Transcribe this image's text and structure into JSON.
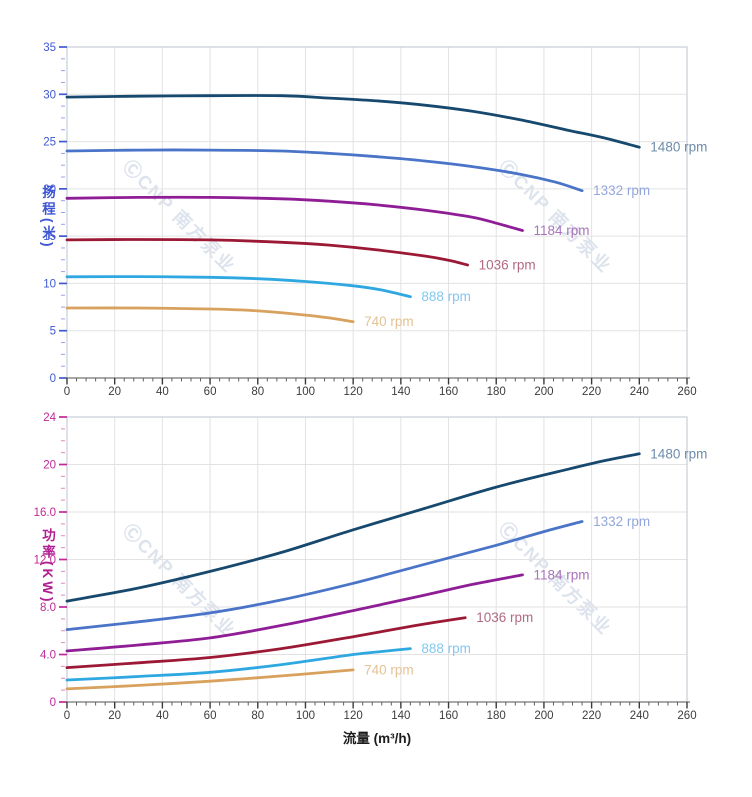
{
  "watermark": {
    "text": "ⒸCNP 南方泵业"
  },
  "x_axis": {
    "title": "流量 (m³/h)",
    "min": 0,
    "max": 260,
    "major_step": 20,
    "minor_step": 4,
    "tick_labels": [
      "0",
      "20",
      "40",
      "60",
      "80",
      "100",
      "120",
      "140",
      "160",
      "180",
      "200",
      "220",
      "240",
      "260"
    ],
    "tick_label_color": "#3c3c3c"
  },
  "chart_data": [
    {
      "type": "line",
      "name": "head",
      "ylabel": "扬程(米)",
      "xlabel": "流量 (m³/h)",
      "xlim": [
        0,
        260
      ],
      "ylim": [
        0,
        35
      ],
      "y_major_step": 5,
      "y_minor_step": 1.25,
      "y_tick_labels": [
        "0",
        "5",
        "10",
        "15",
        "20",
        "25",
        "30",
        "35"
      ],
      "axis_color": "#4059d2",
      "grid": "on",
      "legend_position": "end-of-line",
      "series": [
        {
          "name": "1480 rpm",
          "color": "#17496f",
          "label_color": "#6d8cab",
          "points": [
            [
              0,
              29.7
            ],
            [
              30,
              29.8
            ],
            [
              60,
              29.85
            ],
            [
              90,
              29.85
            ],
            [
              110,
              29.6
            ],
            [
              130,
              29.3
            ],
            [
              150,
              28.85
            ],
            [
              170,
              28.2
            ],
            [
              190,
              27.3
            ],
            [
              210,
              26.2
            ],
            [
              225,
              25.4
            ],
            [
              240,
              24.4
            ]
          ]
        },
        {
          "name": "1332 rpm",
          "color": "#4a74c8",
          "label_color": "#93a7dd",
          "points": [
            [
              0,
              24.0
            ],
            [
              30,
              24.1
            ],
            [
              60,
              24.1
            ],
            [
              90,
              24.0
            ],
            [
              110,
              23.75
            ],
            [
              130,
              23.4
            ],
            [
              150,
              22.95
            ],
            [
              170,
              22.35
            ],
            [
              190,
              21.55
            ],
            [
              205,
              20.7
            ],
            [
              216,
              19.8
            ]
          ]
        },
        {
          "name": "1184 rpm",
          "color": "#8f1d96",
          "label_color": "#a973bb",
          "points": [
            [
              0,
              19.0
            ],
            [
              30,
              19.1
            ],
            [
              60,
              19.1
            ],
            [
              90,
              18.95
            ],
            [
              110,
              18.7
            ],
            [
              130,
              18.3
            ],
            [
              150,
              17.75
            ],
            [
              170,
              17.0
            ],
            [
              181,
              16.3
            ],
            [
              191,
              15.6
            ]
          ]
        },
        {
          "name": "1036 rpm",
          "color": "#9c1935",
          "label_color": "#b16a80",
          "points": [
            [
              0,
              14.6
            ],
            [
              30,
              14.65
            ],
            [
              60,
              14.6
            ],
            [
              90,
              14.35
            ],
            [
              110,
              14.05
            ],
            [
              130,
              13.55
            ],
            [
              150,
              12.9
            ],
            [
              160,
              12.45
            ],
            [
              168,
              11.95
            ]
          ]
        },
        {
          "name": "888 rpm",
          "color": "#2fa8e1",
          "label_color": "#82c8ef",
          "points": [
            [
              0,
              10.7
            ],
            [
              30,
              10.72
            ],
            [
              60,
              10.65
            ],
            [
              80,
              10.5
            ],
            [
              100,
              10.2
            ],
            [
              120,
              9.75
            ],
            [
              132,
              9.3
            ],
            [
              144,
              8.6
            ]
          ]
        },
        {
          "name": "740 rpm",
          "color": "#d8a25e",
          "label_color": "#e3c294",
          "points": [
            [
              0,
              7.4
            ],
            [
              30,
              7.4
            ],
            [
              60,
              7.3
            ],
            [
              80,
              7.1
            ],
            [
              100,
              6.65
            ],
            [
              110,
              6.35
            ],
            [
              120,
              5.95
            ]
          ]
        }
      ]
    },
    {
      "type": "line",
      "name": "power",
      "ylabel": "功率(KW)",
      "xlabel": "流量 (m³/h)",
      "xlim": [
        0,
        260
      ],
      "ylim": [
        0,
        24
      ],
      "y_major_step": 4,
      "y_minor_step": 1,
      "y_tick_labels": [
        "0",
        "4.0",
        "8.0",
        "12.0",
        "16.0",
        "20",
        "24"
      ],
      "axis_color": "#c02898",
      "grid": "on",
      "legend_position": "end-of-line",
      "series": [
        {
          "name": "1480 rpm",
          "color": "#17496f",
          "label_color": "#6d8cab",
          "points": [
            [
              0,
              8.5
            ],
            [
              30,
              9.6
            ],
            [
              60,
              11.0
            ],
            [
              90,
              12.6
            ],
            [
              120,
              14.5
            ],
            [
              150,
              16.3
            ],
            [
              180,
              18.1
            ],
            [
              210,
              19.6
            ],
            [
              225,
              20.3
            ],
            [
              240,
              20.9
            ]
          ]
        },
        {
          "name": "1332 rpm",
          "color": "#4a74c8",
          "label_color": "#93a7dd",
          "points": [
            [
              0,
              6.1
            ],
            [
              30,
              6.75
            ],
            [
              60,
              7.5
            ],
            [
              90,
              8.6
            ],
            [
              120,
              10.0
            ],
            [
              150,
              11.6
            ],
            [
              180,
              13.2
            ],
            [
              200,
              14.35
            ],
            [
              216,
              15.2
            ]
          ]
        },
        {
          "name": "1184 rpm",
          "color": "#8f1d96",
          "label_color": "#a973bb",
          "points": [
            [
              0,
              4.3
            ],
            [
              30,
              4.8
            ],
            [
              60,
              5.4
            ],
            [
              90,
              6.45
            ],
            [
              120,
              7.7
            ],
            [
              150,
              9.0
            ],
            [
              170,
              9.9
            ],
            [
              191,
              10.7
            ]
          ]
        },
        {
          "name": "1036 rpm",
          "color": "#9c1935",
          "label_color": "#b16a80",
          "points": [
            [
              0,
              2.9
            ],
            [
              30,
              3.3
            ],
            [
              60,
              3.75
            ],
            [
              90,
              4.5
            ],
            [
              120,
              5.5
            ],
            [
              145,
              6.4
            ],
            [
              167,
              7.1
            ]
          ]
        },
        {
          "name": "888 rpm",
          "color": "#2fa8e1",
          "label_color": "#82c8ef",
          "points": [
            [
              0,
              1.85
            ],
            [
              30,
              2.15
            ],
            [
              60,
              2.5
            ],
            [
              90,
              3.15
            ],
            [
              120,
              4.0
            ],
            [
              132,
              4.25
            ],
            [
              144,
              4.5
            ]
          ]
        },
        {
          "name": "740 rpm",
          "color": "#d8a25e",
          "label_color": "#e3c294",
          "points": [
            [
              0,
              1.1
            ],
            [
              30,
              1.4
            ],
            [
              60,
              1.75
            ],
            [
              90,
              2.2
            ],
            [
              120,
              2.7
            ]
          ]
        }
      ]
    }
  ]
}
